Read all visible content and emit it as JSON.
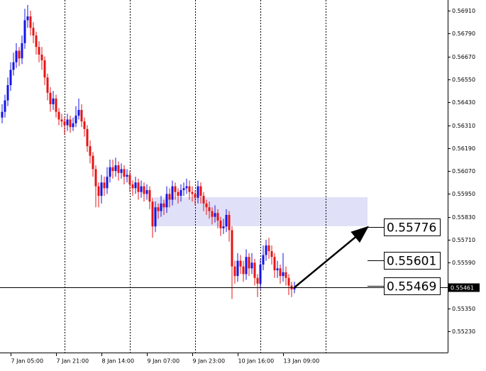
{
  "chart_data": {
    "type": "candlestick",
    "up_color": "#1414e6",
    "down_color": "#e61414",
    "zone_color": "#e0e0f8",
    "x": [
      0,
      1,
      2,
      3,
      4,
      5,
      6,
      7,
      8,
      9,
      10,
      11,
      12,
      13,
      14,
      15,
      16,
      17,
      18,
      19,
      20,
      21,
      22,
      23,
      24,
      25,
      26,
      27,
      28,
      29,
      30,
      31,
      32,
      33,
      34,
      35,
      36,
      37,
      38,
      39,
      40,
      41,
      42,
      43,
      44,
      45,
      46,
      47,
      48,
      49,
      50,
      51,
      52,
      53,
      54,
      55,
      56,
      57,
      58,
      59,
      60,
      61,
      62,
      63,
      64,
      65,
      66,
      67,
      68,
      69,
      70,
      71,
      72,
      73,
      74,
      75,
      76,
      77,
      78,
      79,
      80,
      81,
      82,
      83,
      84,
      85,
      86,
      87,
      88,
      89,
      90,
      91,
      92,
      93,
      94,
      95,
      96,
      97,
      98,
      99,
      100,
      101,
      102,
      103
    ],
    "ohlc": [
      [
        0.5635,
        0.5642,
        0.5632,
        0.5638
      ],
      [
        0.5638,
        0.5647,
        0.5635,
        0.5644
      ],
      [
        0.5644,
        0.5656,
        0.5641,
        0.5652
      ],
      [
        0.5652,
        0.5664,
        0.5649,
        0.566
      ],
      [
        0.566,
        0.5669,
        0.5657,
        0.5664
      ],
      [
        0.5664,
        0.5674,
        0.5661,
        0.567
      ],
      [
        0.567,
        0.5672,
        0.5662,
        0.5666
      ],
      [
        0.5666,
        0.5678,
        0.5663,
        0.5674
      ],
      [
        0.5674,
        0.5692,
        0.5671,
        0.5686
      ],
      [
        0.5686,
        0.5694,
        0.5682,
        0.5688
      ],
      [
        0.5688,
        0.5691,
        0.5678,
        0.5682
      ],
      [
        0.5682,
        0.5685,
        0.5674,
        0.5678
      ],
      [
        0.5678,
        0.568,
        0.5668,
        0.5672
      ],
      [
        0.5672,
        0.5675,
        0.5664,
        0.5668
      ],
      [
        0.5668,
        0.5672,
        0.566,
        0.5665
      ],
      [
        0.5665,
        0.5667,
        0.5652,
        0.5656
      ],
      [
        0.5656,
        0.5658,
        0.5644,
        0.5648
      ],
      [
        0.5648,
        0.5651,
        0.5638,
        0.5642
      ],
      [
        0.5642,
        0.5649,
        0.5639,
        0.5645
      ],
      [
        0.5645,
        0.5647,
        0.5635,
        0.5638
      ],
      [
        0.5638,
        0.564,
        0.5631,
        0.5634
      ],
      [
        0.5634,
        0.5637,
        0.563,
        0.5633
      ],
      [
        0.5633,
        0.5635,
        0.5626,
        0.5631
      ],
      [
        0.5631,
        0.5637,
        0.5628,
        0.5634
      ],
      [
        0.5634,
        0.5636,
        0.5627,
        0.563
      ],
      [
        0.563,
        0.5635,
        0.5628,
        0.5632
      ],
      [
        0.5632,
        0.5641,
        0.563,
        0.5636
      ],
      [
        0.5636,
        0.5645,
        0.5634,
        0.5639
      ],
      [
        0.5639,
        0.5642,
        0.563,
        0.5633
      ],
      [
        0.5633,
        0.5635,
        0.5625,
        0.5629
      ],
      [
        0.5629,
        0.5631,
        0.5617,
        0.562
      ],
      [
        0.562,
        0.5623,
        0.5611,
        0.5615
      ],
      [
        0.5615,
        0.5617,
        0.5604,
        0.5608
      ],
      [
        0.5608,
        0.561,
        0.5588,
        0.5599
      ],
      [
        0.5599,
        0.5601,
        0.5588,
        0.5594
      ],
      [
        0.5594,
        0.5605,
        0.559,
        0.5601
      ],
      [
        0.5601,
        0.5604,
        0.5594,
        0.5598
      ],
      [
        0.5598,
        0.5609,
        0.5595,
        0.5604
      ],
      [
        0.5604,
        0.5613,
        0.5601,
        0.5609
      ],
      [
        0.5609,
        0.5613,
        0.5603,
        0.5607
      ],
      [
        0.5607,
        0.5614,
        0.5604,
        0.561
      ],
      [
        0.561,
        0.5612,
        0.5602,
        0.5606
      ],
      [
        0.5606,
        0.5611,
        0.5603,
        0.5608
      ],
      [
        0.5608,
        0.561,
        0.56,
        0.5604
      ],
      [
        0.5604,
        0.5608,
        0.5601,
        0.5605
      ],
      [
        0.5605,
        0.5607,
        0.5596,
        0.56
      ],
      [
        0.56,
        0.5602,
        0.5594,
        0.5598
      ],
      [
        0.5598,
        0.5604,
        0.5595,
        0.5601
      ],
      [
        0.5601,
        0.5603,
        0.5592,
        0.5596
      ],
      [
        0.5596,
        0.5602,
        0.5593,
        0.5599
      ],
      [
        0.5599,
        0.5601,
        0.5591,
        0.5595
      ],
      [
        0.5595,
        0.56,
        0.5592,
        0.5597
      ],
      [
        0.5597,
        0.5599,
        0.5587,
        0.5591
      ],
      [
        0.5591,
        0.5593,
        0.5572,
        0.5578
      ],
      [
        0.5578,
        0.5591,
        0.5575,
        0.5588
      ],
      [
        0.5588,
        0.559,
        0.5582,
        0.5586
      ],
      [
        0.5586,
        0.5594,
        0.5583,
        0.559
      ],
      [
        0.559,
        0.5592,
        0.5584,
        0.5588
      ],
      [
        0.5588,
        0.5599,
        0.5585,
        0.5595
      ],
      [
        0.5595,
        0.5598,
        0.5588,
        0.5592
      ],
      [
        0.5592,
        0.5602,
        0.5589,
        0.5599
      ],
      [
        0.5599,
        0.5601,
        0.5592,
        0.5596
      ],
      [
        0.5596,
        0.5598,
        0.559,
        0.5594
      ],
      [
        0.5594,
        0.56,
        0.5591,
        0.5597
      ],
      [
        0.5597,
        0.5601,
        0.5594,
        0.5598
      ],
      [
        0.5598,
        0.5603,
        0.5595,
        0.5599
      ],
      [
        0.5599,
        0.5602,
        0.5592,
        0.5596
      ],
      [
        0.5596,
        0.5599,
        0.5591,
        0.5595
      ],
      [
        0.5595,
        0.5597,
        0.5589,
        0.5593
      ],
      [
        0.5593,
        0.5602,
        0.559,
        0.5599
      ],
      [
        0.5599,
        0.5601,
        0.559,
        0.5594
      ],
      [
        0.5594,
        0.5596,
        0.5586,
        0.559
      ],
      [
        0.559,
        0.5592,
        0.5584,
        0.5588
      ],
      [
        0.5588,
        0.5591,
        0.5582,
        0.5586
      ],
      [
        0.5586,
        0.5588,
        0.5579,
        0.5583
      ],
      [
        0.5583,
        0.5589,
        0.558,
        0.5585
      ],
      [
        0.5585,
        0.5587,
        0.5577,
        0.5581
      ],
      [
        0.5581,
        0.5583,
        0.5573,
        0.5577
      ],
      [
        0.5577,
        0.5582,
        0.5574,
        0.5578
      ],
      [
        0.5578,
        0.5587,
        0.5575,
        0.5584
      ],
      [
        0.5584,
        0.5586,
        0.557,
        0.5576
      ],
      [
        0.5576,
        0.5578,
        0.554,
        0.5557
      ],
      [
        0.5557,
        0.556,
        0.5548,
        0.5552
      ],
      [
        0.5552,
        0.5564,
        0.5549,
        0.556
      ],
      [
        0.556,
        0.5563,
        0.5553,
        0.5557
      ],
      [
        0.5557,
        0.556,
        0.5549,
        0.5553
      ],
      [
        0.5553,
        0.5566,
        0.555,
        0.5562
      ],
      [
        0.5562,
        0.5564,
        0.5552,
        0.5556
      ],
      [
        0.5556,
        0.5564,
        0.5553,
        0.5559
      ],
      [
        0.5559,
        0.5561,
        0.5547,
        0.5551
      ],
      [
        0.5551,
        0.5553,
        0.5541,
        0.5548
      ],
      [
        0.5548,
        0.5561,
        0.5545,
        0.5558
      ],
      [
        0.5558,
        0.5568,
        0.5555,
        0.5563
      ],
      [
        0.5563,
        0.5571,
        0.556,
        0.5568
      ],
      [
        0.5568,
        0.5572,
        0.5561,
        0.5565
      ],
      [
        0.5565,
        0.5568,
        0.5558,
        0.5562
      ],
      [
        0.5562,
        0.5564,
        0.5551,
        0.5555
      ],
      [
        0.5555,
        0.556,
        0.5551,
        0.5556
      ],
      [
        0.5556,
        0.5558,
        0.5548,
        0.5552
      ],
      [
        0.5552,
        0.5564,
        0.5549,
        0.5554
      ],
      [
        0.5554,
        0.5557,
        0.5547,
        0.5551
      ],
      [
        0.5551,
        0.5553,
        0.5542,
        0.5547
      ],
      [
        0.5547,
        0.5549,
        0.5541,
        0.5545
      ],
      [
        0.5545,
        0.5549,
        0.5543,
        0.55461
      ]
    ],
    "xlim": [
      -0.75,
      156.75
    ],
    "ylim": [
      0.55119,
      0.56966
    ],
    "xticks": [
      {
        "value": 3,
        "label": "7 Jan 05:00"
      },
      {
        "value": 19,
        "label": "7 Jan 21:00"
      },
      {
        "value": 35,
        "label": "8 Jan 14:00"
      },
      {
        "value": 51,
        "label": "9 Jan 07:00"
      },
      {
        "value": 67,
        "label": "9 Jan 23:00"
      },
      {
        "value": 83,
        "label": "10 Jan 16:00"
      },
      {
        "value": 99,
        "label": "13 Jan 09:00"
      }
    ],
    "yticks": [
      {
        "value": 0.5691,
        "label": "0.56910"
      },
      {
        "value": 0.5679,
        "label": "0.56790"
      },
      {
        "value": 0.5667,
        "label": "0.56670"
      },
      {
        "value": 0.5655,
        "label": "0.56550"
      },
      {
        "value": 0.5643,
        "label": "0.56430"
      },
      {
        "value": 0.5631,
        "label": "0.56310"
      },
      {
        "value": 0.5619,
        "label": "0.56190"
      },
      {
        "value": 0.5607,
        "label": "0.56070"
      },
      {
        "value": 0.5595,
        "label": "0.55950"
      },
      {
        "value": 0.5583,
        "label": "0.55830"
      },
      {
        "value": 0.5571,
        "label": "0.55710"
      },
      {
        "value": 0.5559,
        "label": "0.55590"
      },
      {
        "value": 0.5547,
        "label": "0.55470"
      },
      {
        "value": 0.5535,
        "label": "0.55350"
      },
      {
        "value": 0.5523,
        "label": "0.55230"
      }
    ],
    "vgrid": [
      22,
      45,
      68,
      91,
      114
    ],
    "last_price": 0.55461,
    "zone": {
      "x": [
        53.5,
        128.75
      ],
      "y": [
        0.55933,
        0.55781
      ]
    },
    "arrow": {
      "x": [
        103,
        128.75
      ],
      "y": [
        0.5546,
        0.55776
      ]
    },
    "targets": [
      0.55776,
      0.55601,
      0.55469
    ]
  }
}
